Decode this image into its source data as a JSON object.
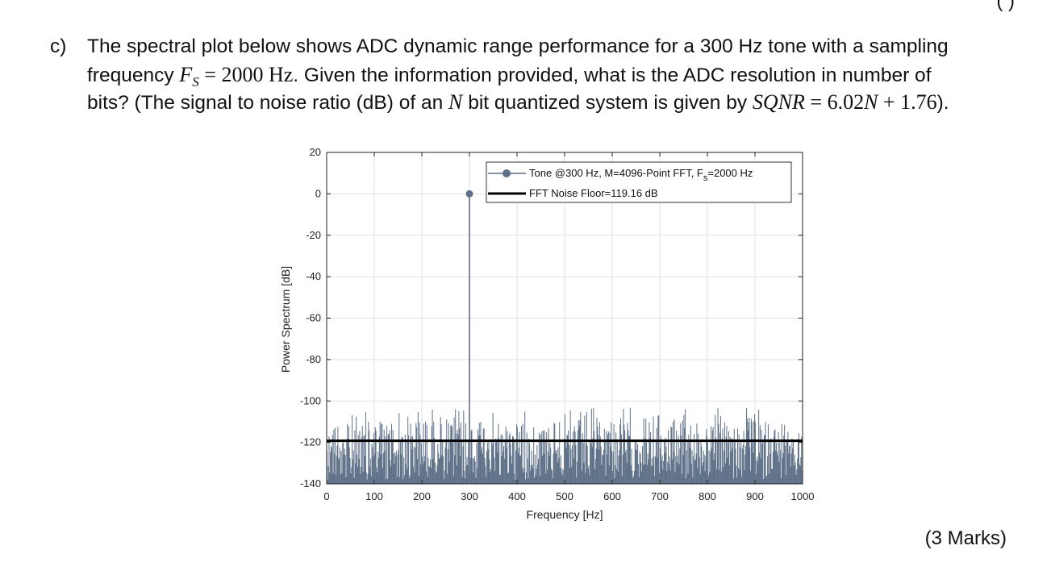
{
  "question": {
    "label": "c)",
    "line1": "The spectral plot below shows ADC dynamic range performance for a 300 Hz tone with a sampling",
    "line2_a": "frequency ",
    "line2_fs": "F",
    "line2_fs_sub": "S",
    "line2_eq": " = 2000 Hz",
    "line2_b": ". Given the information provided, what is the ADC resolution in number of",
    "line3_a": "bits? (The signal to noise ratio (dB) of an ",
    "line3_n": "N",
    "line3_b": " bit quantized system is given by ",
    "line3_sqnr": "SQNR",
    "line3_eq": " = 6.02",
    "line3_n2": "N",
    "line3_eq2": " + 1.76",
    "line3_c": ")."
  },
  "marks": "(3 Marks)",
  "corner_fragment": "(             )",
  "chart_data": {
    "type": "line",
    "xlabel": "Frequency  [Hz]",
    "ylabel": "Power Spectrum [dB]",
    "xlim": [
      0,
      1000
    ],
    "ylim": [
      -140,
      20
    ],
    "xticks": [
      0,
      100,
      200,
      300,
      400,
      500,
      600,
      700,
      800,
      900,
      1000
    ],
    "yticks": [
      20,
      0,
      -20,
      -40,
      -60,
      -80,
      -100,
      -120,
      -140
    ],
    "grid": true,
    "legend_position": "top-right",
    "colors": {
      "tone": "#5e7088",
      "noise_floor": "#000000",
      "grid": "#e1e1e1"
    },
    "series": [
      {
        "name": "Tone @300 Hz, M=4096-Point FFT, F",
        "name_sub": "s",
        "name_tail": "=2000 Hz",
        "style": "stem",
        "peak": {
          "x": 300,
          "y": 0
        },
        "noise_range_db": [
          -140,
          -102
        ],
        "noise_typical_db": -120
      },
      {
        "name": "FFT Noise Floor=119.16 dB",
        "style": "hline",
        "y": -119.16
      }
    ]
  }
}
